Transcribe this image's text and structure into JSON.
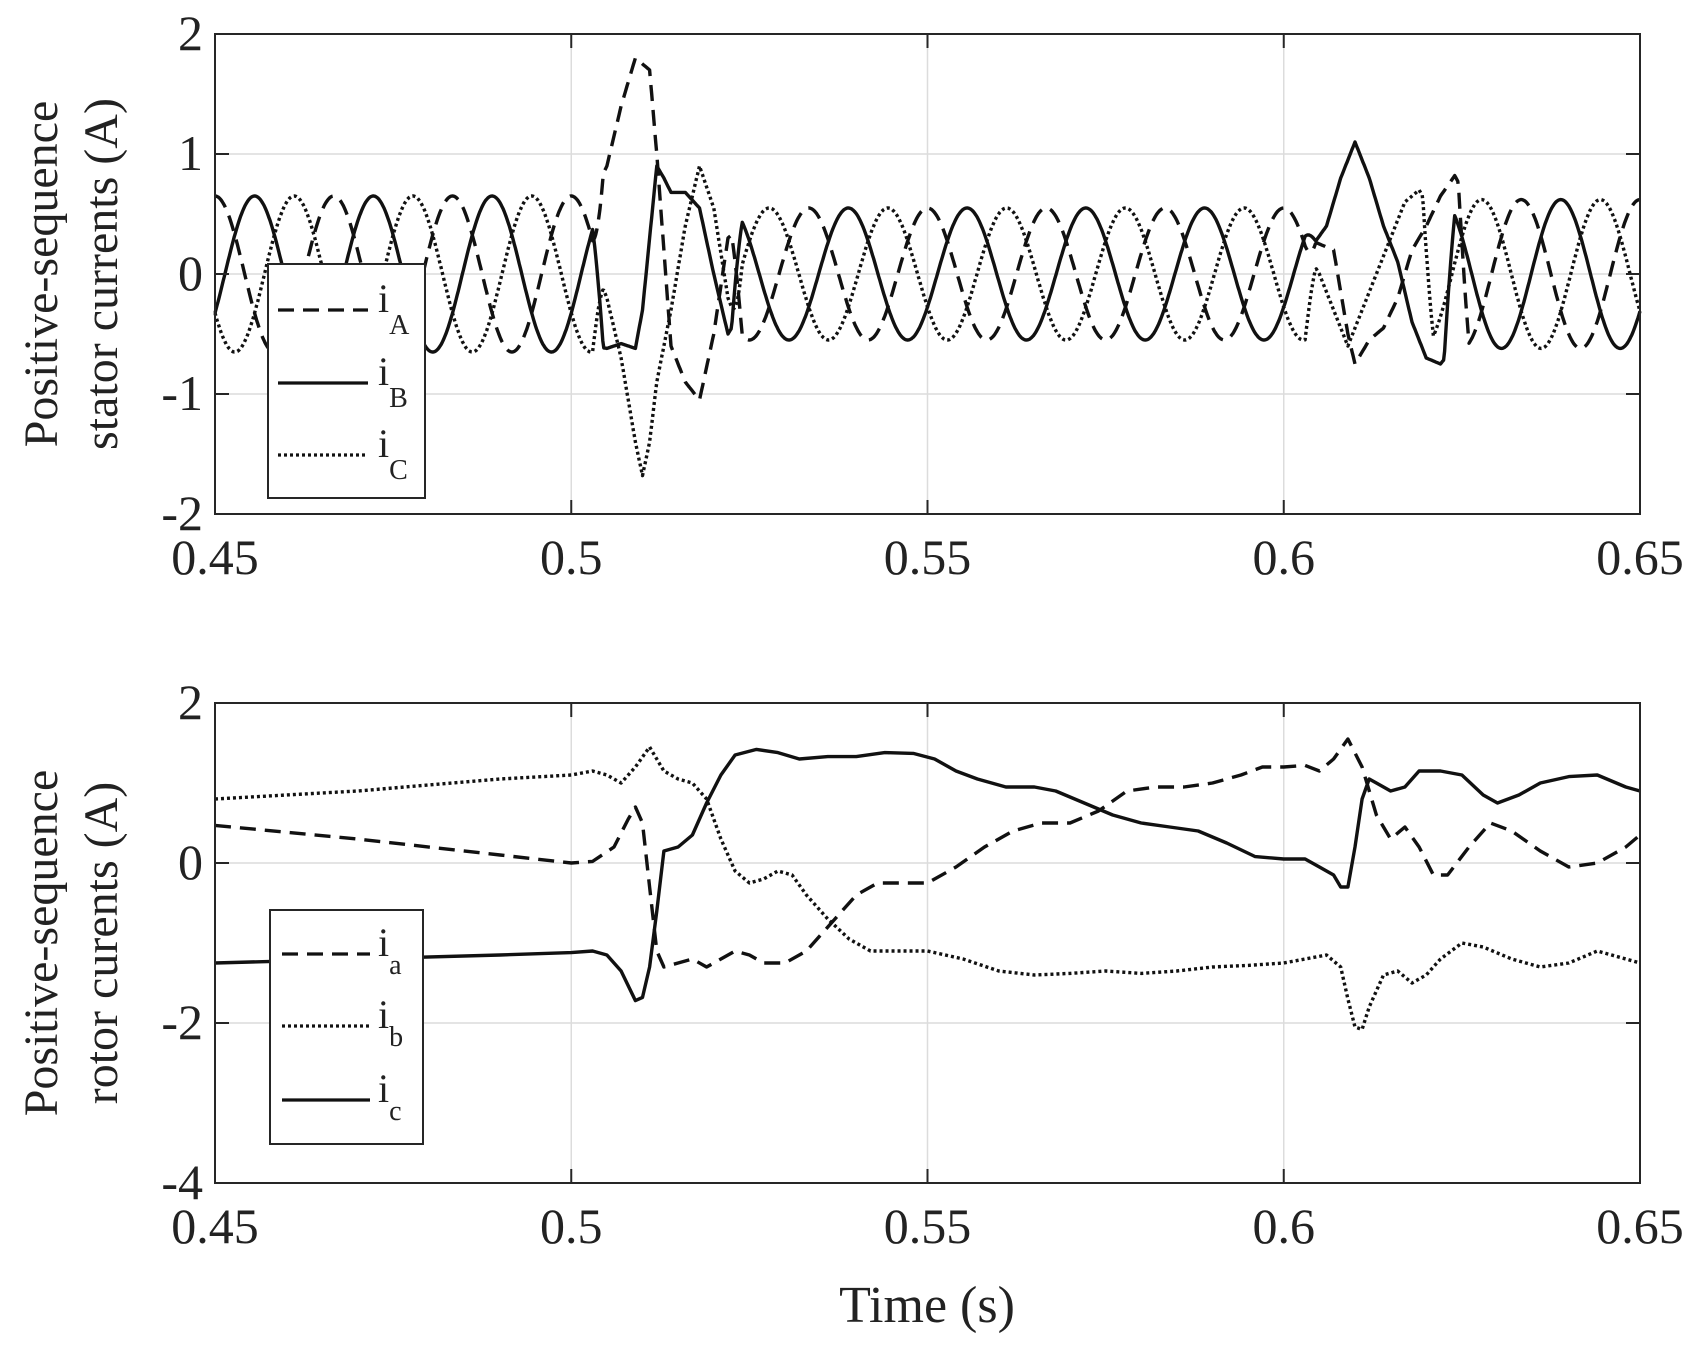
{
  "chart_data": [
    {
      "type": "line",
      "ylabel_lines": [
        "Positive-sequence",
        "stator currents (A)"
      ],
      "xlabel": "",
      "xlim": [
        0.45,
        0.65
      ],
      "ylim": [
        -2,
        2
      ],
      "xticks": [
        0.45,
        0.5,
        0.55,
        0.6,
        0.65
      ],
      "xtick_labels": [
        "0.45",
        "0.5",
        "0.55",
        "0.6",
        "0.65"
      ],
      "yticks": [
        -2,
        -1,
        0,
        1,
        2
      ],
      "ytick_labels": [
        "-2",
        "-1",
        "0",
        "1",
        "2"
      ],
      "grid": true,
      "legend_position": "left",
      "generator": {
        "freq_hz": 60,
        "amp_pre": 0.65,
        "amp_mid": 0.55,
        "amp_post": 0.62,
        "t_fault1": 0.505,
        "t_clear1": 0.52,
        "t_fault2": 0.605,
        "t_clear2": 0.62
      },
      "series": [
        {
          "name": "iA",
          "label_main": "i",
          "label_sub": "A",
          "style": "dashed",
          "phase_deg": 90,
          "transient": [
            [
              0.503,
              0.65
            ],
            [
              0.505,
              0.9
            ],
            [
              0.507,
              1.4
            ],
            [
              0.509,
              1.8
            ],
            [
              0.511,
              1.7
            ],
            [
              0.512,
              1.0
            ],
            [
              0.513,
              0.2
            ],
            [
              0.514,
              -0.6
            ],
            [
              0.516,
              -0.9
            ],
            [
              0.518,
              -1.05
            ],
            [
              0.52,
              -0.5
            ],
            [
              0.522,
              0.3
            ],
            [
              0.524,
              0.4
            ],
            [
              0.603,
              0.3
            ],
            [
              0.607,
              0.2
            ],
            [
              0.609,
              -0.5
            ],
            [
              0.61,
              -0.75
            ],
            [
              0.612,
              -0.55
            ],
            [
              0.614,
              -0.45
            ],
            [
              0.616,
              -0.2
            ],
            [
              0.618,
              0.2
            ],
            [
              0.62,
              0.4
            ],
            [
              0.622,
              0.65
            ],
            [
              0.624,
              0.82
            ],
            [
              0.626,
              0.6
            ]
          ]
        },
        {
          "name": "iB",
          "label_main": "i",
          "label_sub": "B",
          "style": "solid",
          "phase_deg": -30,
          "transient": [
            [
              0.503,
              -0.6
            ],
            [
              0.505,
              -0.62
            ],
            [
              0.507,
              -0.58
            ],
            [
              0.509,
              -0.62
            ],
            [
              0.51,
              -0.3
            ],
            [
              0.511,
              0.3
            ],
            [
              0.512,
              0.9
            ],
            [
              0.513,
              0.8
            ],
            [
              0.514,
              0.68
            ],
            [
              0.516,
              0.68
            ],
            [
              0.518,
              0.55
            ],
            [
              0.52,
              0.0
            ],
            [
              0.522,
              -0.5
            ],
            [
              0.524,
              -0.3
            ],
            [
              0.603,
              0.15
            ],
            [
              0.606,
              0.4
            ],
            [
              0.608,
              0.8
            ],
            [
              0.61,
              1.1
            ],
            [
              0.612,
              0.8
            ],
            [
              0.614,
              0.4
            ],
            [
              0.616,
              0.1
            ],
            [
              0.618,
              -0.4
            ],
            [
              0.62,
              -0.7
            ],
            [
              0.622,
              -0.75
            ],
            [
              0.624,
              -0.6
            ]
          ]
        },
        {
          "name": "iC",
          "label_main": "i",
          "label_sub": "C",
          "style": "dotted",
          "phase_deg": -150,
          "transient": [
            [
              0.503,
              0.1
            ],
            [
              0.505,
              -0.2
            ],
            [
              0.507,
              -0.7
            ],
            [
              0.509,
              -1.4
            ],
            [
              0.51,
              -1.68
            ],
            [
              0.511,
              -1.4
            ],
            [
              0.512,
              -0.9
            ],
            [
              0.514,
              -0.3
            ],
            [
              0.516,
              0.4
            ],
            [
              0.518,
              0.9
            ],
            [
              0.52,
              0.55
            ],
            [
              0.522,
              -0.2
            ],
            [
              0.524,
              -0.5
            ],
            [
              0.603,
              0.2
            ],
            [
              0.605,
              0.0
            ],
            [
              0.607,
              -0.3
            ],
            [
              0.609,
              -0.6
            ],
            [
              0.611,
              -0.3
            ],
            [
              0.613,
              0.0
            ],
            [
              0.615,
              0.3
            ],
            [
              0.617,
              0.6
            ],
            [
              0.619,
              0.7
            ],
            [
              0.621,
              0.5
            ]
          ]
        }
      ]
    },
    {
      "type": "line",
      "ylabel_lines": [
        "Positive-sequence",
        "rotor curents (A)"
      ],
      "xlabel": "Time (s)",
      "xlim": [
        0.45,
        0.65
      ],
      "ylim": [
        -4,
        2
      ],
      "xticks": [
        0.45,
        0.5,
        0.55,
        0.6,
        0.65
      ],
      "xtick_labels": [
        "0.45",
        "0.5",
        "0.55",
        "0.6",
        "0.65"
      ],
      "yticks": [
        -4,
        -2,
        0,
        2
      ],
      "ytick_labels": [
        "-4",
        "-2",
        "0",
        "2"
      ],
      "grid": true,
      "legend_position": "bottom-left",
      "series": [
        {
          "name": "ia",
          "label_main": "i",
          "label_sub": "a",
          "style": "dashed",
          "points": [
            [
              0.45,
              0.47
            ],
            [
              0.47,
              0.3
            ],
            [
              0.49,
              0.1
            ],
            [
              0.5,
              0.0
            ],
            [
              0.503,
              0.02
            ],
            [
              0.506,
              0.2
            ],
            [
              0.508,
              0.55
            ],
            [
              0.509,
              0.7
            ],
            [
              0.51,
              0.5
            ],
            [
              0.511,
              -0.3
            ],
            [
              0.512,
              -1.1
            ],
            [
              0.513,
              -1.3
            ],
            [
              0.515,
              -1.25
            ],
            [
              0.517,
              -1.2
            ],
            [
              0.519,
              -1.3
            ],
            [
              0.521,
              -1.2
            ],
            [
              0.523,
              -1.1
            ],
            [
              0.525,
              -1.15
            ],
            [
              0.527,
              -1.25
            ],
            [
              0.53,
              -1.25
            ],
            [
              0.533,
              -1.1
            ],
            [
              0.536,
              -0.8
            ],
            [
              0.54,
              -0.4
            ],
            [
              0.543,
              -0.25
            ],
            [
              0.546,
              -0.25
            ],
            [
              0.55,
              -0.25
            ],
            [
              0.554,
              -0.05
            ],
            [
              0.558,
              0.2
            ],
            [
              0.562,
              0.4
            ],
            [
              0.566,
              0.5
            ],
            [
              0.57,
              0.5
            ],
            [
              0.574,
              0.65
            ],
            [
              0.578,
              0.9
            ],
            [
              0.582,
              0.95
            ],
            [
              0.586,
              0.95
            ],
            [
              0.59,
              1.0
            ],
            [
              0.594,
              1.1
            ],
            [
              0.597,
              1.2
            ],
            [
              0.6,
              1.2
            ],
            [
              0.603,
              1.22
            ],
            [
              0.605,
              1.15
            ],
            [
              0.607,
              1.3
            ],
            [
              0.609,
              1.55
            ],
            [
              0.611,
              1.2
            ],
            [
              0.613,
              0.6
            ],
            [
              0.615,
              0.3
            ],
            [
              0.617,
              0.45
            ],
            [
              0.619,
              0.2
            ],
            [
              0.621,
              -0.15
            ],
            [
              0.623,
              -0.15
            ],
            [
              0.626,
              0.2
            ],
            [
              0.629,
              0.5
            ],
            [
              0.632,
              0.4
            ],
            [
              0.636,
              0.15
            ],
            [
              0.64,
              -0.05
            ],
            [
              0.644,
              0.0
            ],
            [
              0.648,
              0.2
            ],
            [
              0.65,
              0.35
            ]
          ]
        },
        {
          "name": "ib",
          "label_main": "i",
          "label_sub": "b",
          "style": "dotted",
          "points": [
            [
              0.45,
              0.8
            ],
            [
              0.47,
              0.9
            ],
            [
              0.49,
              1.05
            ],
            [
              0.5,
              1.1
            ],
            [
              0.503,
              1.15
            ],
            [
              0.505,
              1.1
            ],
            [
              0.507,
              1.0
            ],
            [
              0.509,
              1.2
            ],
            [
              0.511,
              1.45
            ],
            [
              0.513,
              1.15
            ],
            [
              0.515,
              1.05
            ],
            [
              0.517,
              1.0
            ],
            [
              0.519,
              0.8
            ],
            [
              0.521,
              0.3
            ],
            [
              0.523,
              -0.1
            ],
            [
              0.525,
              -0.25
            ],
            [
              0.527,
              -0.2
            ],
            [
              0.529,
              -0.1
            ],
            [
              0.531,
              -0.15
            ],
            [
              0.533,
              -0.4
            ],
            [
              0.536,
              -0.7
            ],
            [
              0.539,
              -0.95
            ],
            [
              0.542,
              -1.1
            ],
            [
              0.546,
              -1.1
            ],
            [
              0.55,
              -1.1
            ],
            [
              0.555,
              -1.2
            ],
            [
              0.56,
              -1.35
            ],
            [
              0.565,
              -1.4
            ],
            [
              0.57,
              -1.38
            ],
            [
              0.575,
              -1.35
            ],
            [
              0.58,
              -1.38
            ],
            [
              0.585,
              -1.35
            ],
            [
              0.59,
              -1.3
            ],
            [
              0.595,
              -1.28
            ],
            [
              0.6,
              -1.25
            ],
            [
              0.603,
              -1.2
            ],
            [
              0.606,
              -1.15
            ],
            [
              0.608,
              -1.3
            ],
            [
              0.609,
              -1.7
            ],
            [
              0.61,
              -2.05
            ],
            [
              0.611,
              -2.08
            ],
            [
              0.612,
              -1.8
            ],
            [
              0.614,
              -1.4
            ],
            [
              0.616,
              -1.35
            ],
            [
              0.618,
              -1.5
            ],
            [
              0.62,
              -1.4
            ],
            [
              0.622,
              -1.2
            ],
            [
              0.625,
              -1.0
            ],
            [
              0.628,
              -1.05
            ],
            [
              0.632,
              -1.2
            ],
            [
              0.636,
              -1.3
            ],
            [
              0.64,
              -1.25
            ],
            [
              0.644,
              -1.1
            ],
            [
              0.648,
              -1.2
            ],
            [
              0.65,
              -1.25
            ]
          ]
        },
        {
          "name": "ic",
          "label_main": "i",
          "label_sub": "c",
          "style": "solid",
          "points": [
            [
              0.45,
              -1.25
            ],
            [
              0.47,
              -1.2
            ],
            [
              0.49,
              -1.15
            ],
            [
              0.5,
              -1.12
            ],
            [
              0.503,
              -1.1
            ],
            [
              0.505,
              -1.15
            ],
            [
              0.507,
              -1.35
            ],
            [
              0.509,
              -1.72
            ],
            [
              0.51,
              -1.68
            ],
            [
              0.511,
              -1.3
            ],
            [
              0.512,
              -0.6
            ],
            [
              0.513,
              0.15
            ],
            [
              0.515,
              0.2
            ],
            [
              0.517,
              0.35
            ],
            [
              0.519,
              0.75
            ],
            [
              0.521,
              1.1
            ],
            [
              0.523,
              1.35
            ],
            [
              0.526,
              1.42
            ],
            [
              0.529,
              1.38
            ],
            [
              0.532,
              1.3
            ],
            [
              0.536,
              1.33
            ],
            [
              0.54,
              1.33
            ],
            [
              0.544,
              1.38
            ],
            [
              0.548,
              1.37
            ],
            [
              0.551,
              1.3
            ],
            [
              0.554,
              1.15
            ],
            [
              0.557,
              1.05
            ],
            [
              0.561,
              0.95
            ],
            [
              0.565,
              0.95
            ],
            [
              0.568,
              0.9
            ],
            [
              0.572,
              0.75
            ],
            [
              0.576,
              0.6
            ],
            [
              0.58,
              0.5
            ],
            [
              0.584,
              0.45
            ],
            [
              0.588,
              0.4
            ],
            [
              0.592,
              0.25
            ],
            [
              0.596,
              0.08
            ],
            [
              0.6,
              0.05
            ],
            [
              0.603,
              0.05
            ],
            [
              0.605,
              -0.05
            ],
            [
              0.607,
              -0.15
            ],
            [
              0.608,
              -0.3
            ],
            [
              0.609,
              -0.3
            ],
            [
              0.61,
              0.2
            ],
            [
              0.611,
              0.8
            ],
            [
              0.612,
              1.05
            ],
            [
              0.613,
              1.0
            ],
            [
              0.615,
              0.9
            ],
            [
              0.617,
              0.95
            ],
            [
              0.619,
              1.15
            ],
            [
              0.622,
              1.15
            ],
            [
              0.625,
              1.1
            ],
            [
              0.628,
              0.85
            ],
            [
              0.63,
              0.75
            ],
            [
              0.633,
              0.85
            ],
            [
              0.636,
              1.0
            ],
            [
              0.64,
              1.08
            ],
            [
              0.644,
              1.1
            ],
            [
              0.648,
              0.95
            ],
            [
              0.65,
              0.9
            ]
          ]
        }
      ]
    }
  ]
}
